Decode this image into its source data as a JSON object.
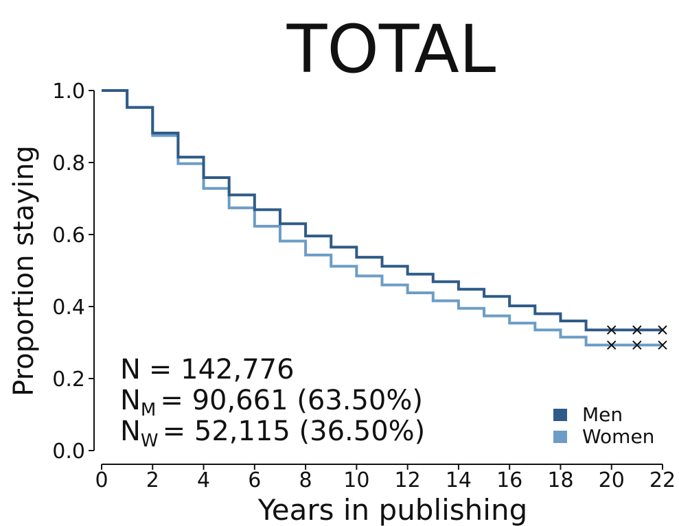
{
  "chart_data": {
    "type": "line",
    "step": true,
    "title": "TOTAL",
    "xlabel": "Years in publishing",
    "ylabel": "Proportion staying",
    "xlim": [
      0,
      22
    ],
    "ylim": [
      0.0,
      1.0
    ],
    "x_ticks": [
      "0",
      "2",
      "4",
      "6",
      "8",
      "10",
      "12",
      "14",
      "16",
      "18",
      "20",
      "22"
    ],
    "y_ticks": [
      "0.0",
      "0.2",
      "0.4",
      "0.6",
      "0.8",
      "1.0"
    ],
    "grid": false,
    "legend_position": "bottom-right",
    "series": [
      {
        "name": "Men",
        "color": "#2f5b88",
        "x": [
          0,
          1,
          2,
          3,
          4,
          5,
          6,
          7,
          8,
          9,
          10,
          11,
          12,
          13,
          14,
          15,
          16,
          17,
          18,
          19,
          20,
          21,
          22
        ],
        "y": [
          1.0,
          0.953,
          0.882,
          0.815,
          0.758,
          0.71,
          0.669,
          0.63,
          0.596,
          0.565,
          0.537,
          0.512,
          0.49,
          0.469,
          0.448,
          0.428,
          0.402,
          0.38,
          0.36,
          0.335,
          0.335,
          0.335,
          0.335
        ],
        "censored_x": [
          20,
          21,
          22
        ]
      },
      {
        "name": "Women",
        "color": "#6b9dc7",
        "x": [
          0,
          1,
          2,
          3,
          4,
          5,
          6,
          7,
          8,
          9,
          10,
          11,
          12,
          13,
          14,
          15,
          16,
          17,
          18,
          19,
          20,
          21,
          22
        ],
        "y": [
          1.0,
          0.953,
          0.875,
          0.797,
          0.728,
          0.674,
          0.623,
          0.582,
          0.543,
          0.512,
          0.485,
          0.46,
          0.438,
          0.416,
          0.395,
          0.374,
          0.354,
          0.335,
          0.315,
          0.293,
          0.293,
          0.293,
          0.293
        ],
        "censored_x": [
          20,
          21,
          22
        ]
      }
    ],
    "annotations": {
      "n_total_label": "N",
      "n_total_value": "= 142,776",
      "n_men_label": "N",
      "n_men_sub": "M",
      "n_men_value": "= 90,661 (63.50%)",
      "n_women_label": "N",
      "n_women_sub": "W",
      "n_women_value": "= 52,115 (36.50%)"
    }
  }
}
